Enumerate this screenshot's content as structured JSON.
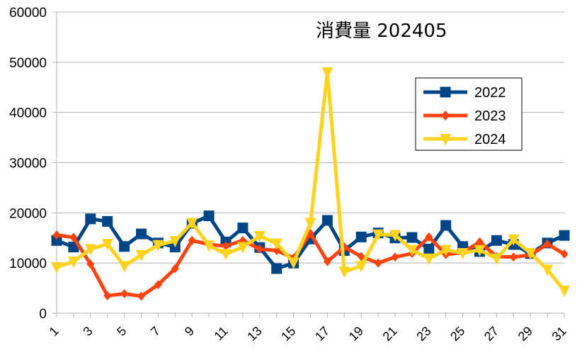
{
  "chart_data": {
    "type": "line",
    "title": "消費量 202405",
    "xlabel": "",
    "ylabel": "",
    "ylim": [
      0,
      60000
    ],
    "yticks": [
      0,
      10000,
      20000,
      30000,
      40000,
      50000,
      60000
    ],
    "grid": "horizontal",
    "legend_position": "right",
    "categories": [
      1,
      2,
      3,
      4,
      5,
      6,
      7,
      8,
      9,
      10,
      11,
      12,
      13,
      14,
      15,
      16,
      17,
      18,
      19,
      20,
      21,
      22,
      23,
      24,
      25,
      26,
      27,
      28,
      29,
      30,
      31
    ],
    "xtick_labels": [
      "1",
      "3",
      "5",
      "7",
      "9",
      "11",
      "13",
      "15",
      "17",
      "19",
      "21",
      "23",
      "25",
      "27",
      "29",
      "31"
    ],
    "series": [
      {
        "name": "2022",
        "color": "#004586",
        "marker": "square",
        "values": [
          14500,
          13200,
          18800,
          18300,
          13300,
          15800,
          14000,
          13200,
          17900,
          19400,
          14200,
          17000,
          13100,
          8900,
          10000,
          14800,
          18500,
          12500,
          15200,
          16000,
          15000,
          15100,
          12800,
          17500,
          13300,
          12300,
          14500,
          13700,
          11900,
          14000,
          15500
        ]
      },
      {
        "name": "2023",
        "color": "#ff420e",
        "marker": "diamond",
        "values": [
          15600,
          15100,
          9800,
          3500,
          3900,
          3400,
          5700,
          8900,
          14500,
          13700,
          13400,
          14500,
          12800,
          12500,
          11000,
          15900,
          10300,
          13200,
          11300,
          10000,
          11200,
          11900,
          15200,
          11700,
          12100,
          14200,
          11300,
          11200,
          11600,
          13800,
          11800
        ]
      },
      {
        "name": "2024",
        "color": "#ffd320",
        "marker": "triangle-down",
        "values": [
          9200,
          10300,
          12800,
          13800,
          9400,
          11600,
          13600,
          14400,
          18000,
          13500,
          11800,
          13200,
          15400,
          13900,
          10100,
          18000,
          48000,
          8300,
          9400,
          15700,
          15600,
          12600,
          10900,
          12600,
          12000,
          12600,
          10900,
          14700,
          12000,
          8700,
          4500
        ]
      }
    ]
  }
}
